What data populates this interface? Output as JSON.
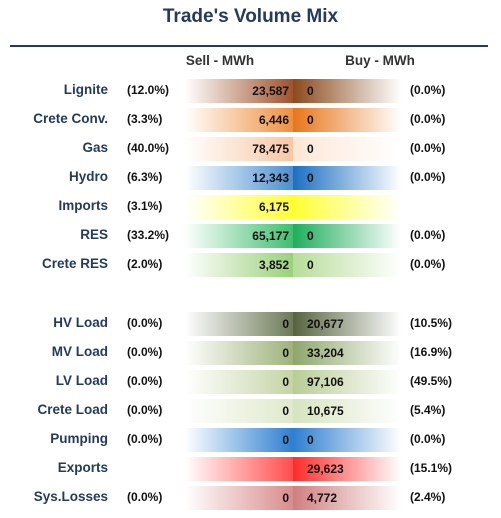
{
  "title": "Trade's Volume Mix",
  "headers": {
    "sell": "Sell - MWh",
    "buy": "Buy - MWh"
  },
  "rows": [
    {
      "label": "Lignite",
      "sell_pct": "(12.0%)",
      "sell": "23,587",
      "buy": "0",
      "buy_pct": "(0.0%)",
      "sell_color": "#a0522d",
      "buy_color": "#8b4a1c"
    },
    {
      "label": "Crete Conv.",
      "sell_pct": "(3.3%)",
      "sell": "6,446",
      "buy": "0",
      "buy_pct": "(0.0%)",
      "sell_color": "#ef8f3f",
      "buy_color": "#e8761a"
    },
    {
      "label": "Gas",
      "sell_pct": "(40.0%)",
      "sell": "78,475",
      "buy": "0",
      "buy_pct": "(0.0%)",
      "sell_color": "#f8c7a4",
      "buy_color": "#fde7d6"
    },
    {
      "label": "Hydro",
      "sell_pct": "(6.3%)",
      "sell": "12,343",
      "buy": "0",
      "buy_pct": "(0.0%)",
      "sell_color": "#4d8fd1",
      "buy_color": "#1c6fc2"
    },
    {
      "label": "Imports",
      "sell_pct": "(3.1%)",
      "sell": "6,175",
      "buy": "",
      "buy_pct": "",
      "sell_color": "#ffff33",
      "buy_color": "#ffff33"
    },
    {
      "label": "RES",
      "sell_pct": "(33.2%)",
      "sell": "65,177",
      "buy": "0",
      "buy_pct": "(0.0%)",
      "sell_color": "#3fbf6f",
      "buy_color": "#1fae5c"
    },
    {
      "label": "Crete RES",
      "sell_pct": "(2.0%)",
      "sell": "3,852",
      "buy": "0",
      "buy_pct": "(0.0%)",
      "sell_color": "#9bd07a",
      "buy_color": "#b8dd9a"
    },
    {
      "label": "HV Load",
      "sell_pct": "(0.0%)",
      "sell": "0",
      "buy": "20,677",
      "buy_pct": "(10.5%)",
      "sell_color": "#6d7a58",
      "buy_color": "#55633f"
    },
    {
      "label": "MV Load",
      "sell_pct": "(0.0%)",
      "sell": "0",
      "buy": "33,204",
      "buy_pct": "(16.9%)",
      "sell_color": "#9fb27a",
      "buy_color": "#8ea66b"
    },
    {
      "label": "LV Load",
      "sell_pct": "(0.0%)",
      "sell": "0",
      "buy": "97,106",
      "buy_pct": "(49.5%)",
      "sell_color": "#c5d4a6",
      "buy_color": "#b9cc96"
    },
    {
      "label": "Crete Load",
      "sell_pct": "(0.0%)",
      "sell": "0",
      "buy": "10,675",
      "buy_pct": "(5.4%)",
      "sell_color": "#dfe9cb",
      "buy_color": "#d6e4bf"
    },
    {
      "label": "Pumping",
      "sell_pct": "(0.0%)",
      "sell": "0",
      "buy": "0",
      "buy_pct": "(0.0%)",
      "sell_color": "#2e7fd0",
      "buy_color": "#2e7fd0"
    },
    {
      "label": "Exports",
      "sell_pct": "",
      "sell": "",
      "buy": "29,623",
      "buy_pct": "(15.1%)",
      "sell_color": "#ff4d4d",
      "buy_color": "#ff2a2a"
    },
    {
      "label": "Sys.Losses",
      "sell_pct": "(0.0%)",
      "sell": "0",
      "buy": "4,772",
      "buy_pct": "(2.4%)",
      "sell_color": "#d98c8c",
      "buy_color": "#cf7f7f"
    }
  ]
}
